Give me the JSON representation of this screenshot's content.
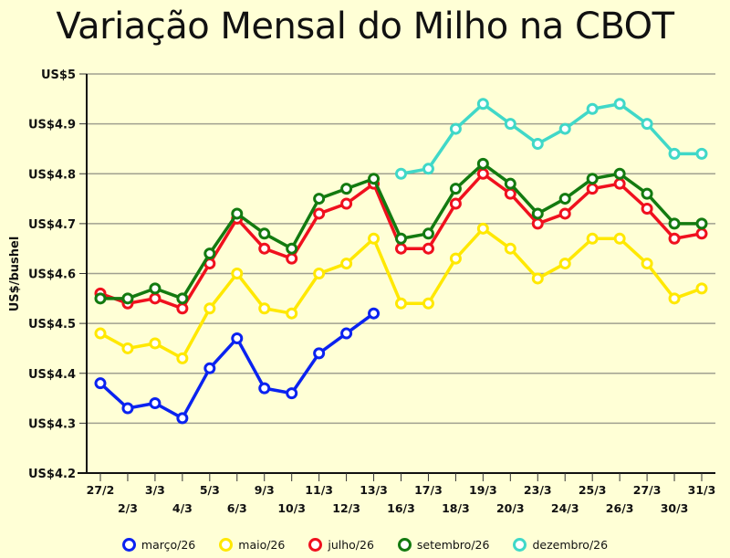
{
  "title": "Variação Mensal do Milho na CBOT",
  "chart_data": {
    "type": "line",
    "title": "Variação Mensal do Milho na CBOT",
    "xlabel": "",
    "ylabel": "US$/bushel",
    "ylim": [
      4.2,
      5.0
    ],
    "yticks": [
      "US$4.2",
      "US$4.3",
      "US$4.4",
      "US$4.5",
      "US$4.6",
      "US$4.7",
      "US$4.8",
      "US$4.9",
      "US$5"
    ],
    "ytick_values": [
      4.2,
      4.3,
      4.4,
      4.5,
      4.6,
      4.7,
      4.8,
      4.9,
      5.0
    ],
    "grid": true,
    "legend_position": "bottom",
    "categories": [
      "27/2",
      "2/3",
      "3/3",
      "4/3",
      "5/3",
      "6/3",
      "9/3",
      "10/3",
      "11/3",
      "12/3",
      "13/3",
      "16/3",
      "17/3",
      "18/3",
      "19/3",
      "20/3",
      "23/3",
      "24/3",
      "25/3",
      "26/3",
      "27/3",
      "30/3",
      "31/3"
    ],
    "series": [
      {
        "name": "março/26",
        "color": "#0A22F0",
        "values": [
          4.38,
          4.33,
          4.34,
          4.31,
          4.41,
          4.47,
          4.37,
          4.36,
          4.44,
          4.48,
          4.52,
          null,
          null,
          null,
          null,
          null,
          null,
          null,
          null,
          null,
          null,
          null,
          null
        ]
      },
      {
        "name": "maio/26",
        "color": "#FFE800",
        "values": [
          4.48,
          4.45,
          4.46,
          4.43,
          4.53,
          4.6,
          4.53,
          4.52,
          4.6,
          4.62,
          4.67,
          4.54,
          4.54,
          4.63,
          4.69,
          4.65,
          4.59,
          4.62,
          4.67,
          4.67,
          4.62,
          4.55,
          4.57
        ]
      },
      {
        "name": "julho/26",
        "color": "#F0101E",
        "values": [
          4.56,
          4.54,
          4.55,
          4.53,
          4.62,
          4.71,
          4.65,
          4.63,
          4.72,
          4.74,
          4.78,
          4.65,
          4.65,
          4.74,
          4.8,
          4.76,
          4.7,
          4.72,
          4.77,
          4.78,
          4.73,
          4.67,
          4.68
        ]
      },
      {
        "name": "setembro/26",
        "color": "#137A10",
        "values": [
          4.55,
          4.55,
          4.57,
          4.55,
          4.64,
          4.72,
          4.68,
          4.65,
          4.75,
          4.77,
          4.79,
          4.67,
          4.68,
          4.77,
          4.82,
          4.78,
          4.72,
          4.75,
          4.79,
          4.8,
          4.76,
          4.7,
          4.7
        ]
      },
      {
        "name": "dezembro/26",
        "color": "#40D8C8",
        "values": [
          null,
          null,
          null,
          null,
          null,
          null,
          null,
          null,
          null,
          null,
          null,
          4.8,
          4.81,
          4.89,
          4.94,
          4.9,
          4.86,
          4.89,
          4.93,
          4.94,
          4.9,
          4.84,
          4.84
        ]
      }
    ]
  }
}
